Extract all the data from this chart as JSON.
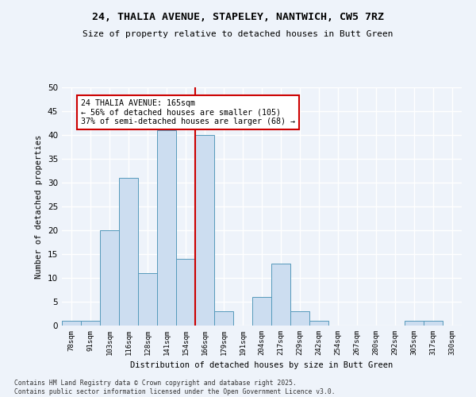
{
  "title1": "24, THALIA AVENUE, STAPELEY, NANTWICH, CW5 7RZ",
  "title2": "Size of property relative to detached houses in Butt Green",
  "xlabel": "Distribution of detached houses by size in Butt Green",
  "ylabel": "Number of detached properties",
  "bar_color": "#ccddf0",
  "bar_edge_color": "#5599bb",
  "bins": [
    "78sqm",
    "91sqm",
    "103sqm",
    "116sqm",
    "128sqm",
    "141sqm",
    "154sqm",
    "166sqm",
    "179sqm",
    "191sqm",
    "204sqm",
    "217sqm",
    "229sqm",
    "242sqm",
    "254sqm",
    "267sqm",
    "280sqm",
    "292sqm",
    "305sqm",
    "317sqm",
    "330sqm"
  ],
  "values": [
    1,
    1,
    20,
    31,
    11,
    41,
    14,
    40,
    3,
    0,
    6,
    13,
    3,
    1,
    0,
    0,
    0,
    0,
    1,
    1,
    0
  ],
  "property_line_x": 6.5,
  "annotation_title": "24 THALIA AVENUE: 165sqm",
  "annotation_line1": "← 56% of detached houses are smaller (105)",
  "annotation_line2": "37% of semi-detached houses are larger (68) →",
  "vline_color": "#cc0000",
  "annotation_box_color": "#cc0000",
  "background_color": "#eef3fa",
  "grid_color": "#ffffff",
  "footer1": "Contains HM Land Registry data © Crown copyright and database right 2025.",
  "footer2": "Contains public sector information licensed under the Open Government Licence v3.0.",
  "ylim": [
    0,
    50
  ],
  "yticks": [
    0,
    5,
    10,
    15,
    20,
    25,
    30,
    35,
    40,
    45,
    50
  ]
}
